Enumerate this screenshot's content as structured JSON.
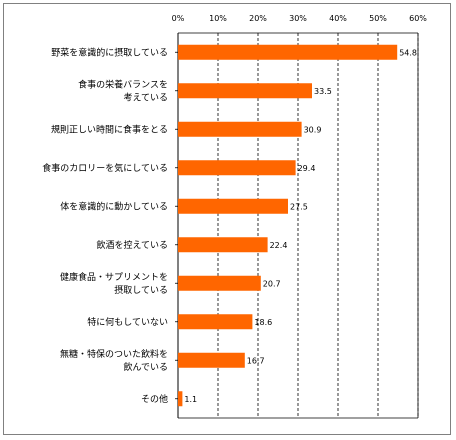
{
  "chart_data": {
    "type": "bar",
    "orientation": "horizontal",
    "title": "",
    "xlabel": "",
    "ylabel": "",
    "xlim": [
      0,
      60
    ],
    "ticks": [
      "0%",
      "10%",
      "20%",
      "30%",
      "40%",
      "50%",
      "60%"
    ],
    "grid": true,
    "bar_color": "#FF6600",
    "categories": [
      [
        "野菜を意識的に摂取している"
      ],
      [
        "食事の栄養バランスを",
        "考えている"
      ],
      [
        "規則正しい時間に食事をとる"
      ],
      [
        "食事のカロリーを気にしている"
      ],
      [
        "体を意識的に動かしている"
      ],
      [
        "飲酒を控えている"
      ],
      [
        "健康食品・サプリメントを",
        "摂取している"
      ],
      [
        "特に何もしていない"
      ],
      [
        "無糖・特保のついた飲料を",
        "飲んでいる"
      ],
      [
        "その他"
      ]
    ],
    "values": [
      54.8,
      33.5,
      30.9,
      29.4,
      27.5,
      22.4,
      20.7,
      18.6,
      16.7,
      1.1
    ],
    "value_labels": [
      "54.8",
      "33.5",
      "30.9",
      "29.4",
      "27.5",
      "22.4",
      "20.7",
      "18.6",
      "16.7",
      "1.1"
    ]
  }
}
